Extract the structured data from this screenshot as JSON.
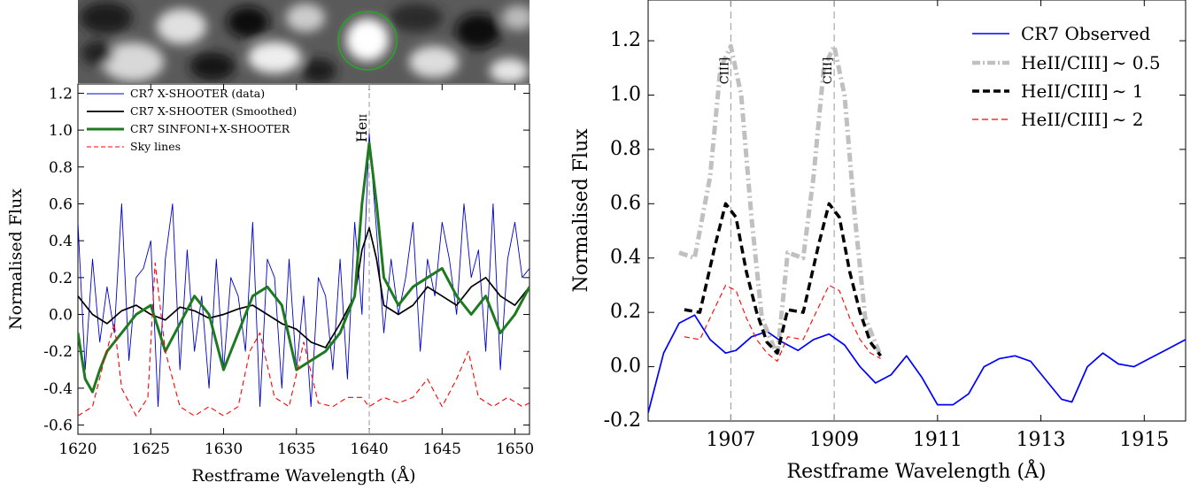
{
  "chart_data": [
    {
      "type": "line",
      "panel": "left",
      "inset": "grayscale image cutout with green circle",
      "xlabel": "Restframe Wavelength (Å)",
      "ylabel": "Normalised Flux",
      "xlim": [
        1620,
        1651
      ],
      "ylim": [
        -0.65,
        1.25
      ],
      "xticks": [
        1620,
        1625,
        1630,
        1635,
        1640,
        1645,
        1650
      ],
      "yticks": [
        -0.6,
        -0.4,
        -0.2,
        0.0,
        0.2,
        0.4,
        0.6,
        0.8,
        1.0,
        1.2
      ],
      "ytick_labels": [
        "-0.6",
        "-0.4",
        "-0.2",
        "0.0",
        "0.2",
        "0.4",
        "0.6",
        "0.8",
        "1.0",
        "1.2"
      ],
      "annotation": {
        "text": "HeII",
        "x": 1640
      },
      "legend_position": "top-left",
      "series": [
        {
          "name": "CR7 X-SHOOTER (data)",
          "color": "#0000cc",
          "style": "solid-thin",
          "x": [
            1620.0,
            1620.5,
            1621.0,
            1621.5,
            1622.0,
            1622.5,
            1623.0,
            1623.5,
            1624.0,
            1624.5,
            1625.0,
            1625.5,
            1626.0,
            1626.5,
            1627.0,
            1627.5,
            1628.0,
            1628.5,
            1629.0,
            1629.5,
            1630.0,
            1630.5,
            1631.0,
            1631.5,
            1632.0,
            1632.5,
            1633.0,
            1633.5,
            1634.0,
            1634.5,
            1635.0,
            1635.5,
            1636.0,
            1636.5,
            1637.0,
            1637.5,
            1638.0,
            1638.5,
            1639.0,
            1639.5,
            1640.0,
            1640.5,
            1641.0,
            1641.5,
            1642.0,
            1642.5,
            1643.0,
            1643.5,
            1644.0,
            1644.5,
            1645.0,
            1645.5,
            1646.0,
            1646.5,
            1647.0,
            1647.5,
            1648.0,
            1648.5,
            1649.0,
            1649.5,
            1650.0,
            1650.5,
            1651.0
          ],
          "y": [
            0.5,
            -0.3,
            0.3,
            -0.15,
            0.15,
            -0.1,
            0.6,
            -0.25,
            0.2,
            0.25,
            0.4,
            -0.5,
            0.3,
            0.6,
            -0.3,
            0.35,
            -0.2,
            0.1,
            -0.4,
            0.3,
            -0.3,
            0.2,
            0.1,
            -0.2,
            0.5,
            -0.5,
            0.3,
            0.2,
            -0.4,
            0.3,
            -0.3,
            0.1,
            -0.5,
            0.2,
            0.1,
            -0.3,
            0.3,
            -0.35,
            0.5,
            0.0,
            0.98,
            0.45,
            -0.1,
            0.3,
            0.0,
            0.2,
            0.5,
            -0.2,
            0.3,
            0.1,
            0.5,
            0.3,
            0.0,
            0.6,
            0.2,
            0.35,
            -0.2,
            0.6,
            -0.3,
            0.3,
            0.5,
            0.2,
            0.25
          ]
        },
        {
          "name": "CR7 X-SHOOTER (Smoothed)",
          "color": "#000000",
          "style": "solid",
          "x": [
            1620,
            1621,
            1622,
            1623,
            1624,
            1625,
            1626,
            1627,
            1628,
            1629,
            1630,
            1631,
            1632,
            1633,
            1634,
            1635,
            1636,
            1637,
            1638,
            1639,
            1639.5,
            1640,
            1640.5,
            1641,
            1642,
            1643,
            1644,
            1645,
            1646,
            1647,
            1648,
            1649,
            1650,
            1651
          ],
          "y": [
            0.1,
            0.0,
            -0.05,
            0.02,
            0.05,
            0.0,
            -0.03,
            0.04,
            0.02,
            -0.02,
            0.0,
            0.03,
            0.05,
            0.0,
            -0.05,
            -0.08,
            -0.15,
            -0.18,
            -0.05,
            0.1,
            0.35,
            0.47,
            0.3,
            0.05,
            0.0,
            0.05,
            0.15,
            0.1,
            0.05,
            0.15,
            0.2,
            0.1,
            0.05,
            0.15
          ]
        },
        {
          "name": "CR7 SINFONI+X-SHOOTER",
          "color": "#1e7a1e",
          "style": "solid-thick",
          "x": [
            1620,
            1620.5,
            1621,
            1621.5,
            1622,
            1623,
            1624,
            1625,
            1626,
            1627,
            1628,
            1629,
            1630,
            1631,
            1632,
            1633,
            1634,
            1635,
            1636,
            1637,
            1638,
            1639,
            1639.5,
            1640,
            1640.5,
            1641,
            1642,
            1643,
            1644,
            1645,
            1646,
            1647,
            1648,
            1649,
            1650,
            1651
          ],
          "y": [
            -0.1,
            -0.35,
            -0.42,
            -0.3,
            -0.2,
            -0.1,
            0.0,
            0.05,
            -0.2,
            -0.05,
            0.1,
            0.0,
            -0.3,
            -0.1,
            0.1,
            0.15,
            0.05,
            -0.3,
            -0.25,
            -0.2,
            -0.1,
            0.1,
            0.6,
            0.93,
            0.6,
            0.2,
            0.05,
            0.15,
            0.2,
            0.25,
            0.1,
            0.0,
            0.1,
            -0.1,
            0.0,
            0.15
          ]
        },
        {
          "name": "Sky lines",
          "color": "#ff0000",
          "style": "dashed",
          "x": [
            1620,
            1621,
            1621.8,
            1622.5,
            1623,
            1624,
            1624.8,
            1625.3,
            1626,
            1627,
            1628,
            1629,
            1630,
            1631,
            1631.8,
            1632.5,
            1633.5,
            1634.5,
            1635.5,
            1636.5,
            1637.5,
            1638.5,
            1639.5,
            1640,
            1641,
            1642,
            1643,
            1644,
            1645,
            1646,
            1646.8,
            1647.5,
            1648.5,
            1649.5,
            1650.5,
            1651
          ],
          "y": [
            -0.55,
            -0.5,
            -0.25,
            -0.05,
            -0.4,
            -0.55,
            -0.45,
            0.28,
            -0.2,
            -0.5,
            -0.55,
            -0.5,
            -0.55,
            -0.5,
            -0.2,
            -0.1,
            -0.45,
            -0.5,
            -0.15,
            -0.48,
            -0.5,
            -0.45,
            -0.45,
            -0.5,
            -0.45,
            -0.48,
            -0.45,
            -0.35,
            -0.5,
            -0.35,
            -0.2,
            -0.45,
            -0.5,
            -0.45,
            -0.5,
            -0.48
          ]
        }
      ]
    },
    {
      "type": "line",
      "panel": "right",
      "xlabel": "Restframe Wavelength (Å)",
      "ylabel": "Normalised Flux",
      "xlim": [
        1905.4,
        1915.8
      ],
      "ylim": [
        -0.2,
        1.35
      ],
      "xticks": [
        1907,
        1909,
        1911,
        1913,
        1915
      ],
      "yticks": [
        -0.2,
        0.0,
        0.2,
        0.4,
        0.6,
        0.8,
        1.0,
        1.2
      ],
      "ytick_labels": [
        "-0.2",
        "0.0",
        "0.2",
        "0.4",
        "0.6",
        "0.8",
        "1.0",
        "1.2"
      ],
      "annotations": [
        {
          "text": "CIII]",
          "x": 1907
        },
        {
          "text": "CIII]",
          "x": 1909
        }
      ],
      "legend_position": "top-right",
      "series": [
        {
          "name": "CR7 Observed",
          "color": "#0000ff",
          "style": "solid",
          "x": [
            1905.4,
            1905.7,
            1906.0,
            1906.3,
            1906.6,
            1906.9,
            1907.1,
            1907.4,
            1907.7,
            1908.0,
            1908.3,
            1908.6,
            1908.9,
            1909.2,
            1909.5,
            1909.8,
            1910.1,
            1910.4,
            1910.7,
            1911.0,
            1911.3,
            1911.6,
            1911.9,
            1912.2,
            1912.5,
            1912.8,
            1913.1,
            1913.4,
            1913.6,
            1913.9,
            1914.2,
            1914.5,
            1914.8,
            1915.1,
            1915.4,
            1915.8
          ],
          "y": [
            -0.17,
            0.05,
            0.16,
            0.19,
            0.1,
            0.05,
            0.06,
            0.11,
            0.13,
            0.09,
            0.06,
            0.1,
            0.12,
            0.08,
            0.0,
            -0.06,
            -0.03,
            0.04,
            -0.04,
            -0.14,
            -0.14,
            -0.1,
            0.0,
            0.03,
            0.04,
            0.02,
            -0.05,
            -0.12,
            -0.13,
            0.0,
            0.05,
            0.01,
            0.0,
            0.03,
            0.06,
            0.1
          ]
        },
        {
          "name": "HeII/CIII] ~ 0.5",
          "color": "#c0c0c0",
          "style": "dash-dot-thick",
          "x": [
            1906.0,
            1906.3,
            1906.6,
            1906.8,
            1907.0,
            1907.2,
            1907.4,
            1907.6,
            1907.9,
            1908.1,
            1908.4,
            1908.6,
            1908.8,
            1909.0,
            1909.2,
            1909.4,
            1909.6,
            1909.9
          ],
          "y": [
            0.42,
            0.4,
            0.7,
            1.1,
            1.18,
            1.0,
            0.55,
            0.18,
            0.04,
            0.42,
            0.4,
            0.7,
            1.1,
            1.18,
            1.0,
            0.55,
            0.18,
            0.04
          ]
        },
        {
          "name": "HeII/CIII] ~ 1",
          "color": "#000000",
          "style": "dashed-thick",
          "x": [
            1906.1,
            1906.4,
            1906.7,
            1906.9,
            1907.1,
            1907.3,
            1907.5,
            1907.7,
            1907.9,
            1908.1,
            1908.4,
            1908.7,
            1908.9,
            1909.1,
            1909.3,
            1909.5,
            1909.7,
            1909.9
          ],
          "y": [
            0.21,
            0.2,
            0.45,
            0.6,
            0.55,
            0.35,
            0.2,
            0.09,
            0.05,
            0.21,
            0.2,
            0.45,
            0.6,
            0.55,
            0.35,
            0.2,
            0.09,
            0.04
          ]
        },
        {
          "name": "HeII/CIII] ~ 2",
          "color": "#ff0000",
          "style": "dashed",
          "x": [
            1906.1,
            1906.4,
            1906.7,
            1906.9,
            1907.1,
            1907.3,
            1907.5,
            1907.7,
            1907.9,
            1908.1,
            1908.4,
            1908.7,
            1908.9,
            1909.1,
            1909.3,
            1909.5,
            1909.7,
            1909.9
          ],
          "y": [
            0.11,
            0.1,
            0.22,
            0.3,
            0.28,
            0.18,
            0.1,
            0.05,
            0.02,
            0.11,
            0.1,
            0.22,
            0.3,
            0.28,
            0.18,
            0.1,
            0.05,
            0.03
          ]
        }
      ]
    }
  ],
  "labels": {
    "left_xlabel": "Restframe Wavelength (Å)",
    "left_ylabel": "Normalised Flux",
    "right_xlabel": "Restframe Wavelength (Å)",
    "right_ylabel": "Normalised Flux",
    "heii_prefix": "He",
    "heii_roman": "II",
    "ciii_label": "CIII]",
    "legend_left": [
      "CR7 X-SHOOTER (data)",
      "CR7 X-SHOOTER (Smoothed)",
      "CR7 SINFONI+X-SHOOTER",
      "Sky lines"
    ],
    "legend_right": [
      "CR7 Observed",
      "HeII/CIII]",
      "HeII/CIII]",
      "HeII/CIII]"
    ],
    "legend_right_suffix": [
      "",
      "∼ 0.5",
      "∼ 1",
      "∼ 2"
    ]
  },
  "colors": {
    "data_blue": "#0000cc",
    "smoothed_black": "#000000",
    "sinfoni_green": "#1e7a1e",
    "sky_red": "#ff0000",
    "observed_blue": "#0000ff",
    "ratio_gray": "#c0c0c0",
    "inset_circle_green": "#22aa22",
    "guide_gray": "#999999"
  }
}
